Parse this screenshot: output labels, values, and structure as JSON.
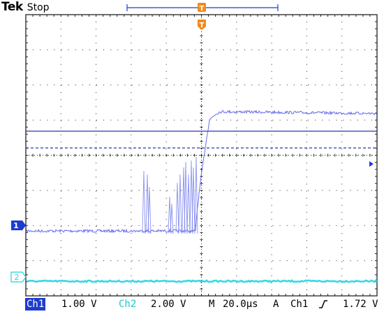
{
  "header": {
    "brand": "Tek",
    "acq_state": "Stop"
  },
  "markers": {
    "trigger_T": "T",
    "ch1_marker": "1",
    "ch2_marker": "2"
  },
  "status": {
    "ch1_label": "Ch1",
    "ch1_scale": "1.00 V",
    "ch2_label": "Ch2",
    "ch2_scale": "2.00 V",
    "timebase_prefix": "M",
    "timebase": "20.0µs",
    "trigger_mode": "A",
    "trigger_source": "Ch1",
    "trigger_slope_icon": "rising-edge-icon",
    "trigger_level": "1.72 V"
  },
  "colors": {
    "grid": "#222222",
    "ch1": "#4a55e6",
    "ch1_marker_bg": "#1e3ccf",
    "ch2": "#22d4e0",
    "trigger": "#f28a1a"
  }
}
